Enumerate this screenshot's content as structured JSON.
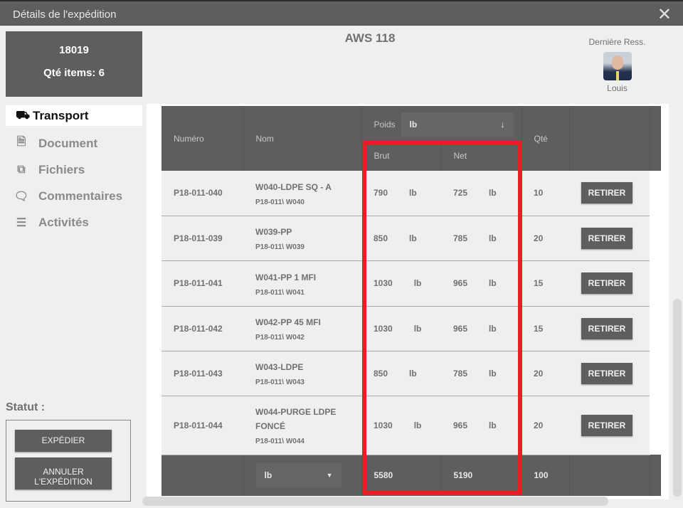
{
  "window": {
    "title": "Détails de l'expédition",
    "close_icon": "close-icon"
  },
  "info": {
    "number": "18019",
    "items": "Qté items: 6"
  },
  "header": {
    "title": "AWS 118",
    "resource_label": "Dernière Ress.",
    "resource_name": "Louis"
  },
  "nav": [
    {
      "label": "Transport",
      "icon": "truck-icon",
      "glyph": "⛟",
      "active": true
    },
    {
      "label": "Document",
      "icon": "document-icon",
      "glyph": "🗎"
    },
    {
      "label": "Fichiers",
      "icon": "files-icon",
      "glyph": "⧉"
    },
    {
      "label": "Commentaires",
      "icon": "comments-icon",
      "glyph": "🗨"
    },
    {
      "label": "Activités",
      "icon": "list-icon",
      "glyph": "☰"
    }
  ],
  "status": {
    "label": "Statut :",
    "ship": "EXPÉDIER",
    "cancel": "ANNULER L'EXPÉDITION"
  },
  "table": {
    "headers": {
      "numero": "Numéro",
      "nom": "Nom",
      "poids": "Poids",
      "poids_unit": "lb",
      "brut": "Brut",
      "net": "Net",
      "qte": "Qté"
    },
    "rows": [
      {
        "numero": "P18-011-040",
        "nom": "W040-LDPE SQ - A",
        "code": "P18-011\\ W040",
        "brut": "790",
        "net": "725",
        "unit": "lb",
        "qte": "10"
      },
      {
        "numero": "P18-011-039",
        "nom": "W039-PP",
        "code": "P18-011\\ W039",
        "brut": "850",
        "net": "785",
        "unit": "lb",
        "qte": "20"
      },
      {
        "numero": "P18-011-041",
        "nom": "W041-PP 1 MFI",
        "code": "P18-011\\ W041",
        "brut": "1030",
        "net": "965",
        "unit": "lb",
        "qte": "15"
      },
      {
        "numero": "P18-011-042",
        "nom": "W042-PP 45 MFI",
        "code": "P18-011\\ W042",
        "brut": "1030",
        "net": "965",
        "unit": "lb",
        "qte": "15"
      },
      {
        "numero": "P18-011-043",
        "nom": "W043-LDPE",
        "code": "P18-011\\ W043",
        "brut": "850",
        "net": "785",
        "unit": "lb",
        "qte": "20"
      },
      {
        "numero": "P18-011-044",
        "nom": "W044-PURGE LDPE FONCÉ",
        "code": "P18-011\\ W044",
        "brut": "1030",
        "net": "965",
        "unit": "lb",
        "qte": "20"
      }
    ],
    "action_label": "RETIRER",
    "footer": {
      "unit": "lb",
      "brut": "5580",
      "net": "5190",
      "qte": "100"
    }
  },
  "colors": {
    "highlight": "#ea1c24",
    "header_bg": "#5e5e5e"
  }
}
